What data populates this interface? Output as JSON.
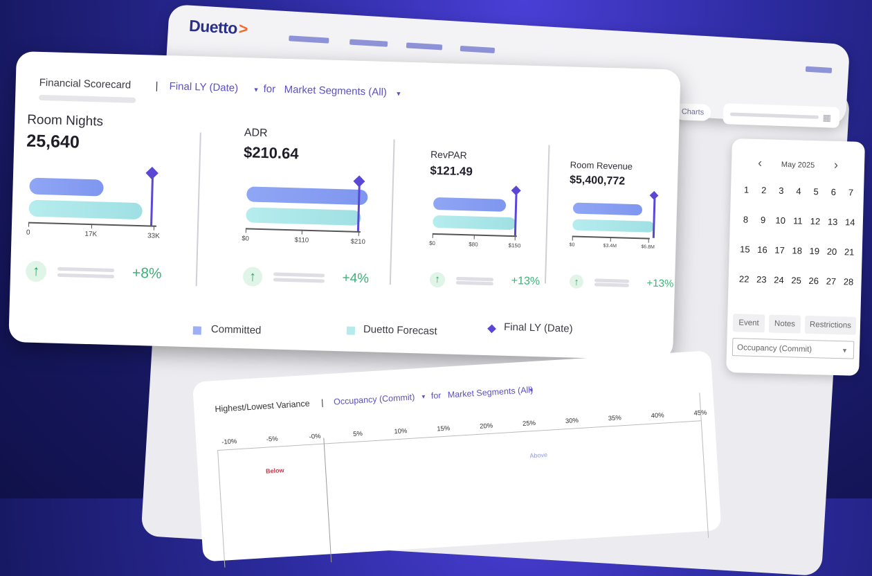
{
  "browser": {
    "logo_text": "Duetto",
    "logo_chevron": ">"
  },
  "toolbar": {
    "charts_label": "Charts"
  },
  "calendar": {
    "month": "May 2025",
    "prev": "‹",
    "next": "›",
    "days": [
      "1",
      "2",
      "3",
      "4",
      "5",
      "6",
      "7",
      "8",
      "9",
      "10",
      "11",
      "12",
      "13",
      "14",
      "15",
      "16",
      "17",
      "18",
      "19",
      "20",
      "21",
      "22",
      "23",
      "24",
      "25",
      "26",
      "27",
      "28"
    ],
    "tabs": [
      "Event",
      "Notes",
      "Restrictions"
    ],
    "select_value": "Occupancy (Commit)"
  },
  "scorecard": {
    "title": "Financial Scorecard",
    "separator": "|",
    "compare": "Final LY (Date)",
    "for": "for",
    "segment": "Market Segments (All)",
    "kpis": [
      {
        "label": "Room Nights",
        "value": "25,640",
        "ticks": [
          "0",
          "17K",
          "33K"
        ],
        "change": "+8%",
        "committed": 0.55,
        "forecast": 0.84,
        "final_ly": 0.9
      },
      {
        "label": "ADR",
        "value": "$210.64",
        "ticks": [
          "$0",
          "$110",
          "$210"
        ],
        "change": "+4%",
        "committed": 1.0,
        "forecast": 0.95,
        "final_ly": 0.92
      },
      {
        "label": "RevPAR",
        "value": "$121.49",
        "ticks": [
          "$0",
          "$80",
          "$150"
        ],
        "change": "+13%",
        "committed": 0.82,
        "forecast": 0.94,
        "final_ly": 0.92
      },
      {
        "label": "Room Revenue",
        "value": "$5,400,772",
        "ticks": [
          "$0",
          "$3.4M",
          "$6.8M"
        ],
        "change": "+13%",
        "committed": 0.85,
        "forecast": 1.0,
        "final_ly": 0.98
      }
    ],
    "legend": {
      "committed": "Committed",
      "forecast": "Duetto Forecast",
      "final_ly": "Final LY (Date)"
    }
  },
  "variance": {
    "title": "Highest/Lowest Variance",
    "separator": "|",
    "metric": "Occupancy (Commit)",
    "for": "for",
    "segment": "Market Segments (All)",
    "ticks": [
      "-10%",
      "-5%",
      "-0%",
      "5%",
      "10%",
      "15%",
      "20%",
      "25%",
      "30%",
      "35%",
      "40%",
      "45%"
    ],
    "below_label": "Below",
    "above_label": "Above"
  },
  "colors": {
    "committed": "#8fa6f5",
    "forecast": "#a8e6e8",
    "final_ly": "#5a47d6",
    "positive": "#3bb277",
    "accent": "#5a4fc5",
    "below": "#c0394b"
  }
}
